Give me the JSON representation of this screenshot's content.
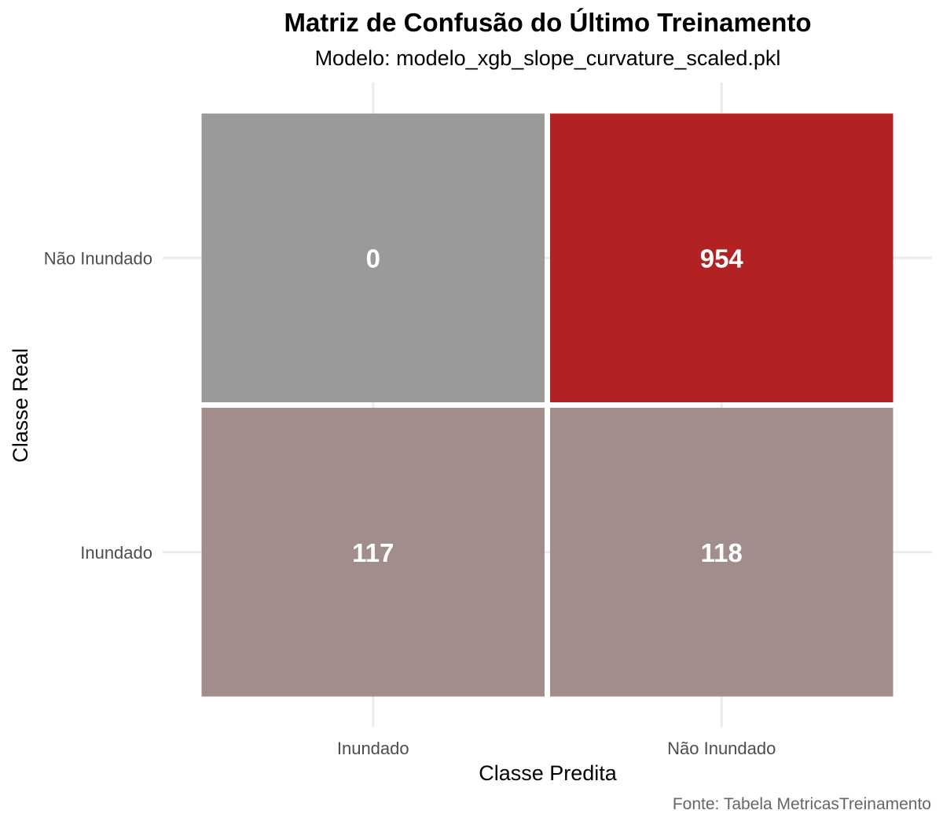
{
  "chart_data": {
    "type": "heatmap",
    "title": "Matriz de Confusão do Último Treinamento",
    "subtitle": "Modelo: modelo_xgb_slope_curvature_scaled.pkl",
    "xlabel": "Classe Predita",
    "ylabel": "Classe Real",
    "caption": "Fonte: Tabela MetricasTreinamento",
    "x_categories": [
      "Inundado",
      "Não Inundado"
    ],
    "y_categories": [
      "Inundado",
      "Não Inundado"
    ],
    "cells": [
      {
        "real": "Não Inundado",
        "predita": "Inundado",
        "value": 0,
        "color": "#9a9a9a"
      },
      {
        "real": "Não Inundado",
        "predita": "Não Inundado",
        "value": 954,
        "color": "#b22222"
      },
      {
        "real": "Inundado",
        "predita": "Inundado",
        "value": 117,
        "color": "#a18e8b"
      },
      {
        "real": "Inundado",
        "predita": "Não Inundado",
        "value": 118,
        "color": "#a18e8b"
      }
    ],
    "grid": true,
    "legend": "none"
  }
}
